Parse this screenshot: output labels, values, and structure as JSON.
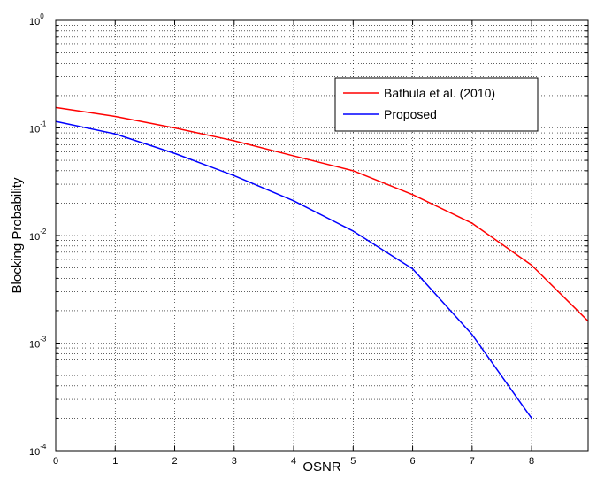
{
  "chart_data": {
    "type": "line",
    "xlabel": "OSNR",
    "ylabel": "Blocking Probability",
    "xlim": [
      0,
      8.95
    ],
    "ylim": [
      0.0001,
      1
    ],
    "yscale": "log",
    "grid": true,
    "legend_position": "top-right",
    "x_ticks": [
      {
        "value": 0,
        "label": "0"
      },
      {
        "value": 1,
        "label": "1"
      },
      {
        "value": 2,
        "label": "2"
      },
      {
        "value": 3,
        "label": "3"
      },
      {
        "value": 4,
        "label": "4"
      },
      {
        "value": 5,
        "label": "5"
      },
      {
        "value": 6,
        "label": "6"
      },
      {
        "value": 7,
        "label": "7"
      },
      {
        "value": 8,
        "label": "8"
      }
    ],
    "y_ticks": [
      {
        "value": 1,
        "base": "10",
        "exp": "0"
      },
      {
        "value": 0.1,
        "base": "10",
        "exp": "-1"
      },
      {
        "value": 0.01,
        "base": "10",
        "exp": "-2"
      },
      {
        "value": 0.001,
        "base": "10",
        "exp": "-3"
      },
      {
        "value": 0.0001,
        "base": "10",
        "exp": "-4"
      }
    ],
    "series": [
      {
        "name": "Bathula et al. (2010)",
        "color": "#ff0000",
        "x": [
          0,
          1,
          2,
          3,
          4,
          5,
          6,
          7,
          8,
          8.95
        ],
        "y": [
          0.155,
          0.128,
          0.1,
          0.076,
          0.055,
          0.04,
          0.024,
          0.013,
          0.0053,
          0.0016
        ]
      },
      {
        "name": "Proposed",
        "color": "#0000ff",
        "x": [
          0,
          1,
          2,
          3,
          4,
          5,
          6,
          7,
          8
        ],
        "y": [
          0.115,
          0.088,
          0.058,
          0.036,
          0.021,
          0.011,
          0.0049,
          0.0012,
          0.0002
        ]
      }
    ]
  }
}
